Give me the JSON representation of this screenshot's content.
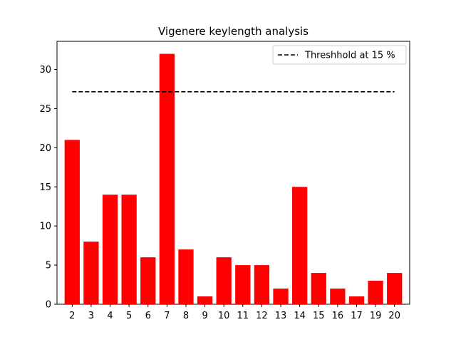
{
  "chart_data": {
    "type": "bar",
    "title": "Vigenere keylength analysis",
    "xlabel": "",
    "ylabel": "",
    "categories": [
      "2",
      "3",
      "4",
      "5",
      "6",
      "7",
      "8",
      "9",
      "10",
      "11",
      "12",
      "13",
      "14",
      "15",
      "16",
      "17",
      "19",
      "20"
    ],
    "values": [
      21,
      8,
      14,
      14,
      6,
      32,
      7,
      1,
      6,
      5,
      5,
      2,
      15,
      4,
      2,
      1,
      3,
      4
    ],
    "ylim": [
      0,
      33.6
    ],
    "yticks": [
      0,
      5,
      10,
      15,
      20,
      25,
      30
    ],
    "bar_color": "#ff0000",
    "threshold": {
      "label": "Threshhold at 15 %",
      "value": 27.15,
      "color": "#000000",
      "style": "dashed"
    },
    "legend_position": "top-right",
    "grid": false
  }
}
